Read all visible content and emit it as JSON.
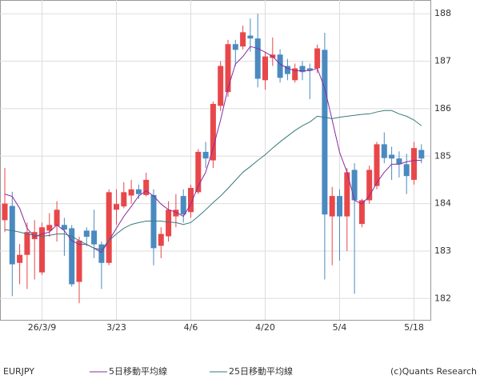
{
  "chart_data": {
    "type": "candlestick",
    "symbol": "EURJPY",
    "copyright": "(c)Quants Research",
    "categories": [
      null,
      null,
      null,
      null,
      null,
      "26/3/9",
      null,
      null,
      null,
      null,
      null,
      null,
      null,
      null,
      null,
      "3/23",
      null,
      null,
      null,
      null,
      null,
      null,
      null,
      null,
      null,
      "4/6",
      null,
      null,
      null,
      null,
      null,
      null,
      null,
      null,
      null,
      "4/20",
      null,
      null,
      null,
      null,
      null,
      null,
      null,
      null,
      null,
      "5/4",
      null,
      null,
      null,
      null,
      null,
      null,
      null,
      null,
      null,
      "5/18",
      null
    ],
    "open": [
      183.65,
      183.95,
      182.75,
      182.92,
      183.25,
      182.55,
      183.43,
      183.53,
      183.55,
      183.48,
      182.35,
      183.43,
      183.43,
      183.14,
      182.75,
      183.87,
      183.94,
      184.17,
      184.3,
      184.18,
      184.18,
      183.11,
      183.31,
      183.73,
      184.16,
      183.82,
      184.24,
      185.09,
      184.91,
      186.06,
      186.35,
      187.36,
      187.31,
      187.54,
      187.48,
      186.6,
      187.07,
      187.14,
      186.9,
      186.6,
      186.9,
      186.85,
      186.85,
      187.24,
      183.73,
      184.16,
      183.73,
      184.71,
      183.57,
      184.07,
      184.37,
      185.25,
      185.03,
      184.95,
      184.83,
      184.5,
      185.13
    ],
    "high": [
      184.75,
      184.25,
      183.15,
      183.6,
      183.65,
      183.6,
      183.8,
      184.05,
      183.7,
      183.55,
      183.3,
      183.5,
      183.87,
      183.2,
      184.3,
      184.3,
      184.45,
      184.5,
      184.4,
      184.65,
      184.3,
      183.5,
      184.05,
      184.2,
      184.3,
      184.4,
      185.15,
      185.3,
      186.15,
      187.0,
      187.45,
      187.45,
      187.75,
      187.9,
      188.0,
      187.2,
      187.5,
      187.25,
      187.05,
      186.95,
      187.0,
      186.95,
      187.35,
      187.6,
      184.35,
      184.3,
      184.75,
      184.85,
      184.1,
      184.8,
      185.3,
      185.5,
      185.2,
      185.1,
      185.05,
      185.3,
      185.25
    ],
    "low": [
      183.4,
      182.05,
      182.3,
      182.2,
      182.4,
      182.5,
      183.3,
      183.2,
      182.9,
      182.25,
      181.9,
      183.1,
      182.85,
      182.2,
      182.7,
      183.55,
      183.9,
      184.0,
      184.1,
      184.15,
      182.7,
      182.85,
      183.2,
      183.5,
      183.6,
      183.7,
      184.2,
      184.75,
      184.75,
      185.95,
      186.25,
      186.9,
      187.25,
      187.2,
      186.45,
      186.4,
      186.9,
      186.55,
      186.6,
      186.55,
      186.6,
      186.2,
      186.75,
      182.4,
      182.7,
      182.8,
      183.0,
      182.1,
      183.5,
      184.0,
      184.3,
      184.85,
      184.5,
      184.55,
      184.2,
      184.4,
      184.85
    ],
    "close": [
      184.0,
      182.72,
      182.92,
      183.4,
      183.4,
      183.5,
      183.55,
      183.87,
      183.45,
      182.3,
      183.22,
      183.3,
      183.14,
      182.75,
      184.24,
      183.99,
      184.24,
      184.3,
      184.2,
      184.5,
      183.06,
      183.36,
      183.87,
      183.87,
      183.77,
      184.33,
      185.09,
      184.95,
      186.1,
      186.9,
      187.36,
      187.24,
      187.61,
      187.48,
      186.63,
      187.1,
      187.14,
      186.65,
      186.73,
      186.85,
      186.77,
      186.8,
      187.27,
      183.77,
      184.16,
      183.73,
      184.66,
      184.07,
      184.07,
      184.71,
      185.25,
      184.96,
      184.95,
      184.83,
      184.58,
      185.17,
      184.95
    ],
    "up_color": "#e8474a",
    "down_color": "#4a8ac0",
    "series": [
      {
        "name": "5日移動平均線",
        "color": "#8a2aa0",
        "values": [
          184.2,
          184.15,
          183.9,
          183.48,
          183.3,
          183.36,
          183.4,
          183.55,
          183.43,
          183.22,
          183.14,
          183.14,
          183.06,
          182.97,
          183.22,
          183.48,
          183.73,
          183.94,
          184.16,
          184.27,
          184.16,
          183.99,
          183.87,
          183.82,
          183.73,
          183.99,
          184.37,
          184.66,
          185.17,
          185.76,
          186.43,
          186.94,
          187.1,
          187.31,
          187.27,
          187.19,
          187.1,
          186.94,
          186.85,
          186.8,
          186.8,
          186.8,
          186.85,
          186.43,
          185.76,
          185.08,
          184.66,
          184.07,
          183.99,
          184.16,
          184.44,
          184.66,
          184.83,
          184.83,
          184.88,
          184.91,
          184.91
        ]
      },
      {
        "name": "25日移動平均線",
        "color": "#3a7a7a",
        "values": [
          183.45,
          183.43,
          183.4,
          183.36,
          183.33,
          183.31,
          183.33,
          183.36,
          183.36,
          183.31,
          183.22,
          183.14,
          183.06,
          183.03,
          183.22,
          183.36,
          183.48,
          183.56,
          183.6,
          183.63,
          183.63,
          183.63,
          183.61,
          183.6,
          183.56,
          183.6,
          183.73,
          183.87,
          184.02,
          184.16,
          184.32,
          184.49,
          184.66,
          184.78,
          184.91,
          185.03,
          185.17,
          185.3,
          185.42,
          185.54,
          185.64,
          185.72,
          185.84,
          185.82,
          185.79,
          185.82,
          185.84,
          185.86,
          185.88,
          185.89,
          185.93,
          185.96,
          185.96,
          185.89,
          185.84,
          185.76,
          185.64
        ]
      }
    ],
    "ylim": [
      181.55,
      188.29
    ],
    "yticks": [
      182,
      183,
      184,
      185,
      186,
      187,
      188
    ],
    "grid": true
  }
}
